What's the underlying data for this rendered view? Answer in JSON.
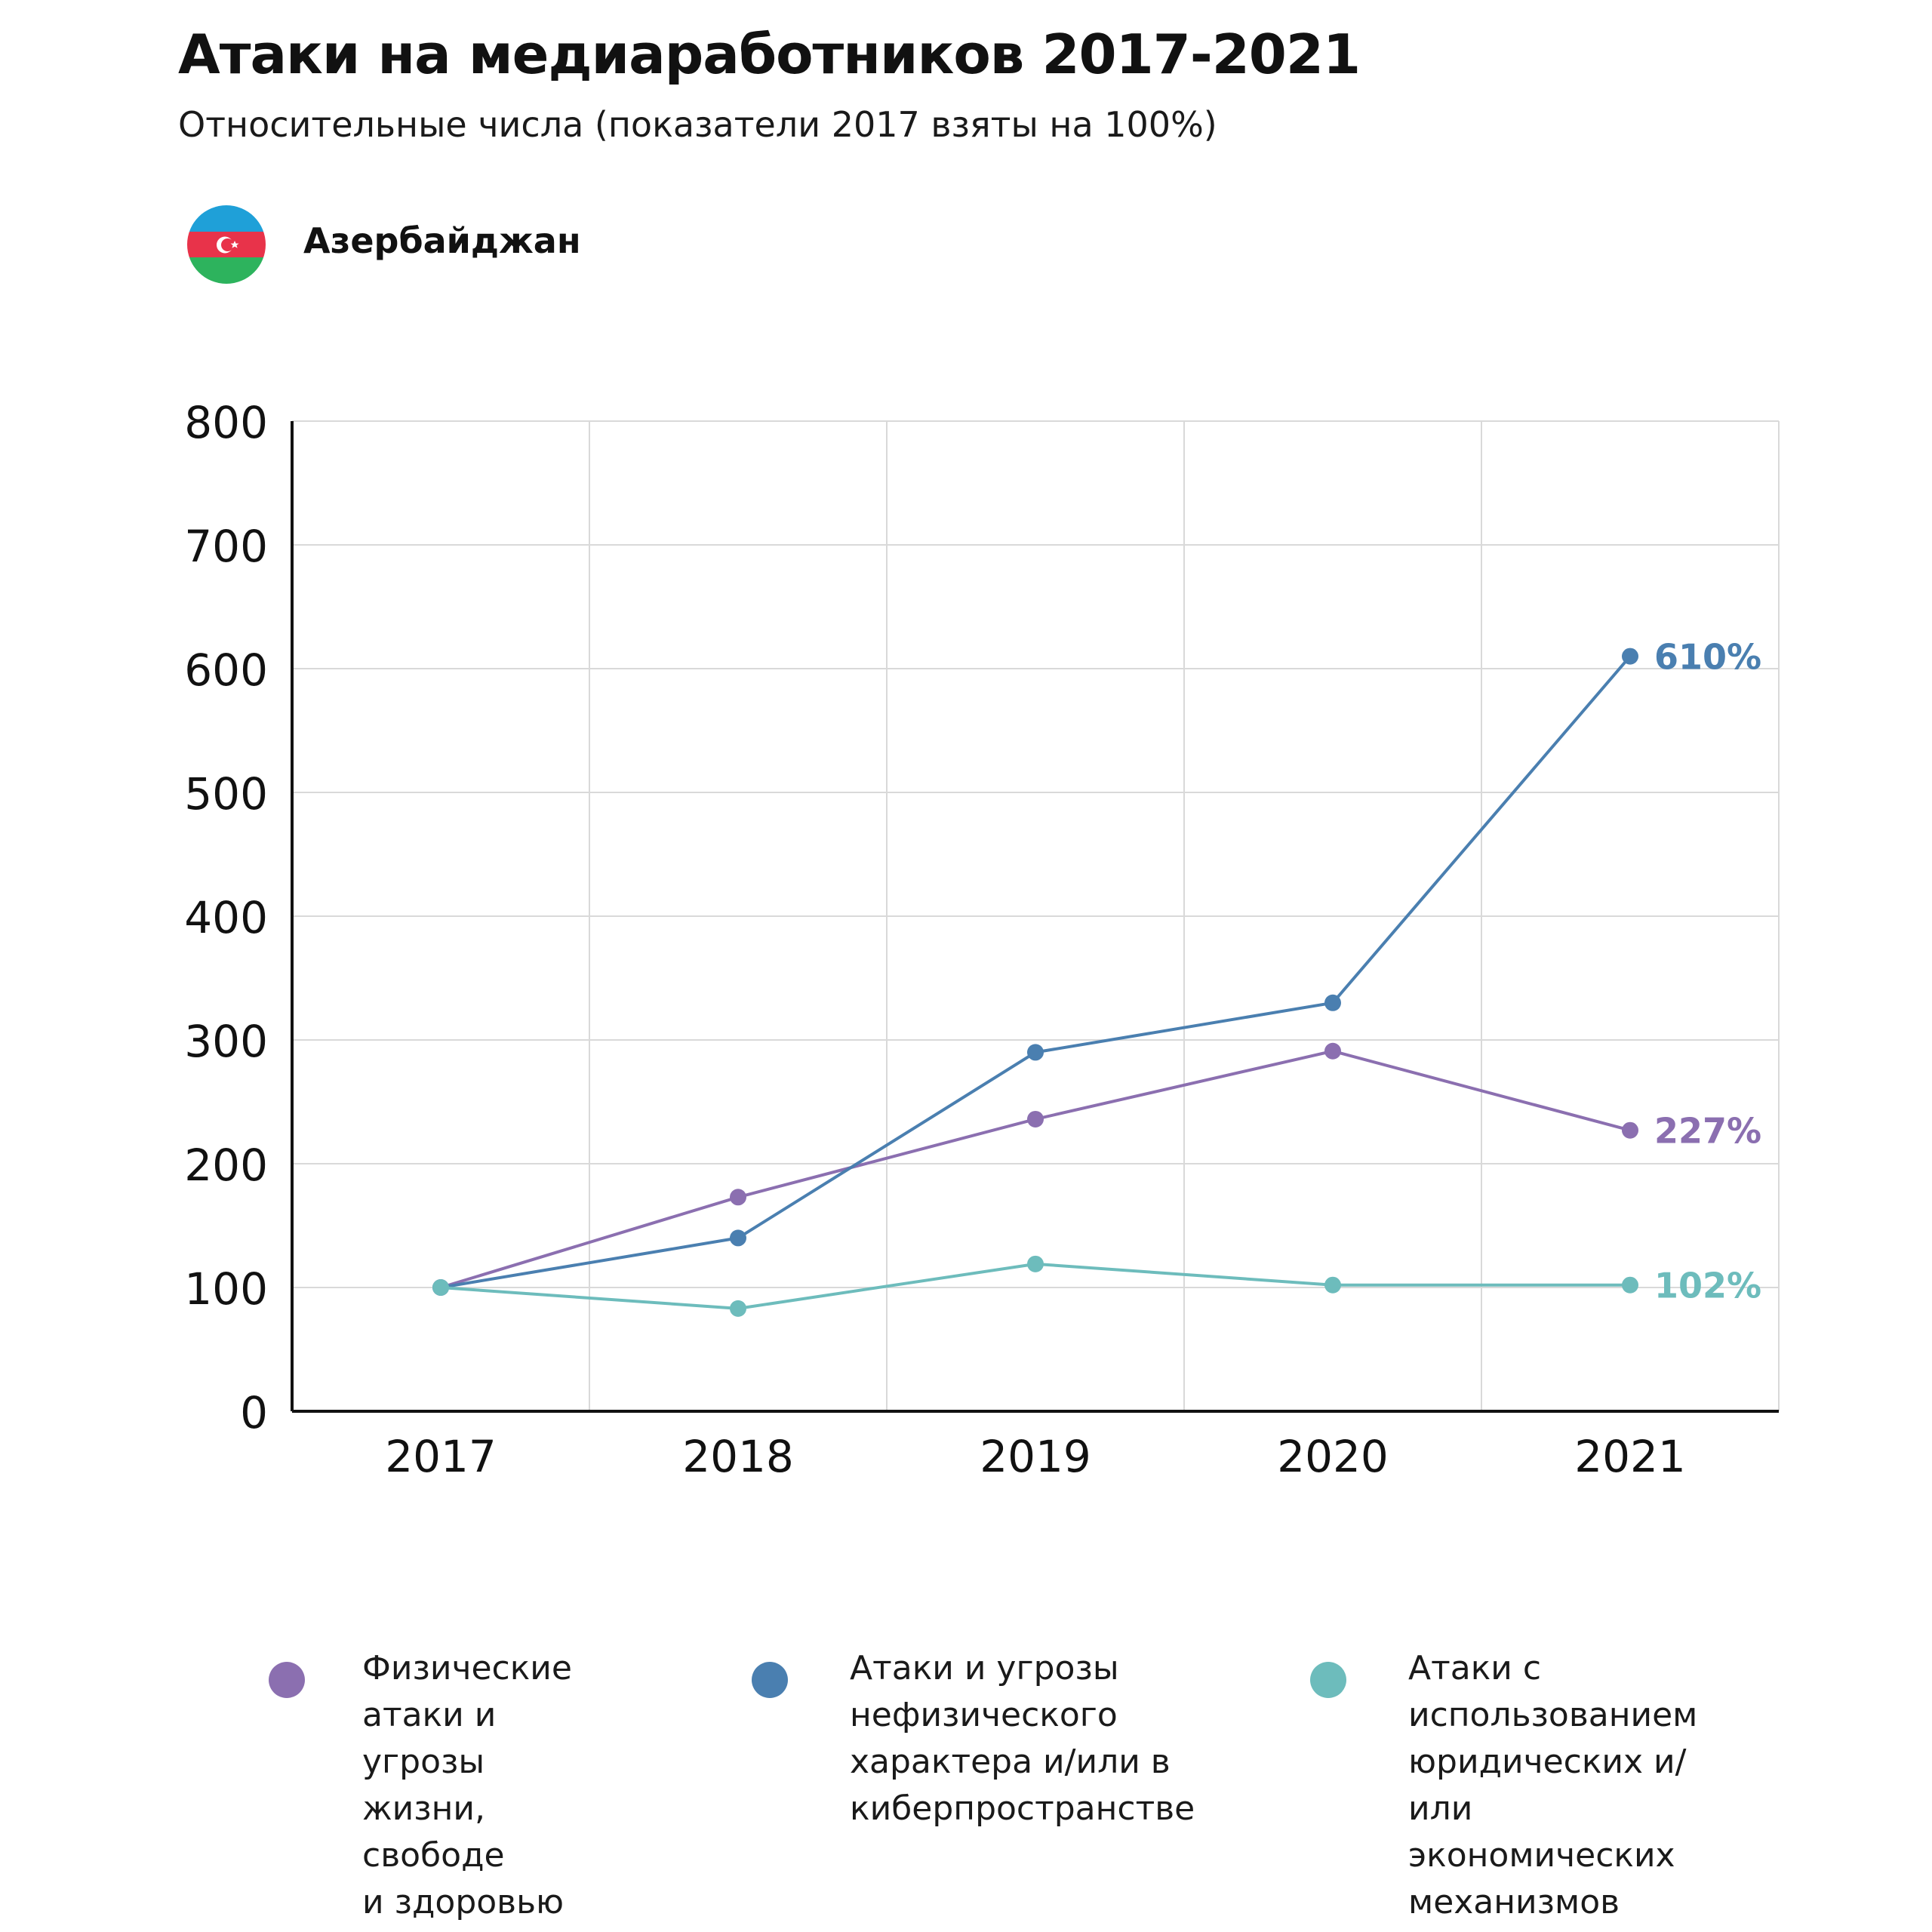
{
  "header": {
    "title": "Атаки на медиаработников 2017-2021",
    "subtitle": "Относительные числа (показатели 2017 взяты на 100%)",
    "country": "Азербайджан"
  },
  "flag": {
    "icon": "azerbaijan-flag-icon",
    "colors": {
      "blue": "#1fa0d8",
      "red": "#e8334a",
      "green": "#2db35d",
      "emblem": "#ffffff"
    }
  },
  "chart_data": {
    "type": "line",
    "title": "Атаки на медиаработников 2017-2021",
    "subtitle": "Относительные числа (показатели 2017 взяты на 100%)",
    "xlabel": "",
    "ylabel": "",
    "x": [
      "2017",
      "2018",
      "2019",
      "2020",
      "2021"
    ],
    "ylim": [
      0,
      800
    ],
    "yticks": [
      "0",
      "100",
      "200",
      "300",
      "400",
      "500",
      "600",
      "700",
      "800"
    ],
    "grid": true,
    "legend_position": "bottom",
    "series": [
      {
        "name": "Физические атаки и угрозы жизни, свободе и здоровью",
        "color": "#8b6fb0",
        "values": [
          100,
          173,
          236,
          291,
          227
        ],
        "end_label": "227%"
      },
      {
        "name": "Атаки и угрозы нефизического характера и/или в киберпространстве",
        "color": "#4a7fb0",
        "values": [
          100,
          140,
          290,
          330,
          610
        ],
        "end_label": "610%"
      },
      {
        "name": "Атаки с использованием юридических и/или экономических механизмов",
        "color": "#6dbcbc",
        "values": [
          100,
          83,
          119,
          102,
          102
        ],
        "end_label": "102%"
      }
    ]
  },
  "legend": {
    "items": [
      {
        "text": "Физические\nатаки и угрозы\nжизни, свободе\nи здоровью",
        "color": "#8b6fb0"
      },
      {
        "text": "Атаки и угрозы\nнефизического\nхарактера и/или в\nкиберпространстве",
        "color": "#4a7fb0"
      },
      {
        "text": "Атаки с\nиспользованием\nюридических и/или\nэкономических\nмеханизмов",
        "color": "#6dbcbc"
      }
    ]
  }
}
